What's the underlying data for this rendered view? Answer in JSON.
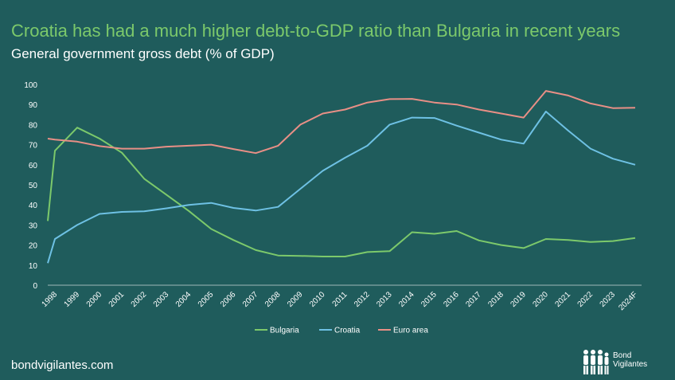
{
  "title": "Croatia has had a much higher debt-to-GDP ratio than Bulgaria in recent years",
  "subtitle": "General government gross debt (% of GDP)",
  "footer": {
    "url": "bondvigilantes.com",
    "logo_line1": "Bond",
    "logo_line2": "Vigilantes"
  },
  "colors": {
    "background": "#1f5c5c",
    "bulgaria": "#7cc96b",
    "croatia": "#6ec1e4",
    "euro_area": "#e88f86"
  },
  "chart_data": {
    "type": "line",
    "title": "Croatia has had a much higher debt-to-GDP ratio than Bulgaria in recent years",
    "subtitle": "General government gross debt (% of GDP)",
    "ylim": [
      0,
      100
    ],
    "yticks": [
      0,
      10,
      20,
      30,
      40,
      50,
      60,
      70,
      80,
      90,
      100
    ],
    "grid": false,
    "legend": "bottom",
    "x": [
      "1998",
      "1999",
      "2000",
      "2001",
      "2002",
      "2003",
      "2004",
      "2005",
      "2006",
      "2007",
      "2008",
      "2009",
      "2010",
      "2011",
      "2012",
      "2013",
      "2014",
      "2015",
      "2016",
      "2017",
      "2018",
      "2019",
      "2020",
      "2021",
      "2022",
      "2023",
      "2024F"
    ],
    "series": [
      {
        "name": "Bulgaria",
        "start_value": 32,
        "values": [
          67,
          78.5,
          73,
          66,
          53,
          45,
          37,
          28,
          22.5,
          17.5,
          14.8,
          14.6,
          14.3,
          14.3,
          16.5,
          17,
          26.4,
          25.6,
          27,
          22.3,
          20,
          18.5,
          23,
          22.5,
          21.5,
          22,
          23.5
        ]
      },
      {
        "name": "Croatia",
        "start_value": 11,
        "values": [
          23,
          30,
          35.5,
          36.5,
          36.8,
          38.3,
          40,
          41,
          38.5,
          37.2,
          39,
          48,
          57,
          63.5,
          69.5,
          80,
          83.5,
          83.3,
          79.5,
          76,
          72.5,
          70.5,
          86.5,
          77,
          68,
          63,
          60
        ]
      },
      {
        "name": "Euro area",
        "start_value": 73,
        "values": [
          72.5,
          71.5,
          69.3,
          68,
          68,
          69,
          69.5,
          70,
          67.8,
          65.8,
          69.5,
          80,
          85.5,
          87.5,
          91,
          92.7,
          92.8,
          91,
          90,
          87.5,
          85.5,
          83.5,
          96.8,
          94.5,
          90.5,
          88.2,
          88.4
        ]
      }
    ]
  }
}
